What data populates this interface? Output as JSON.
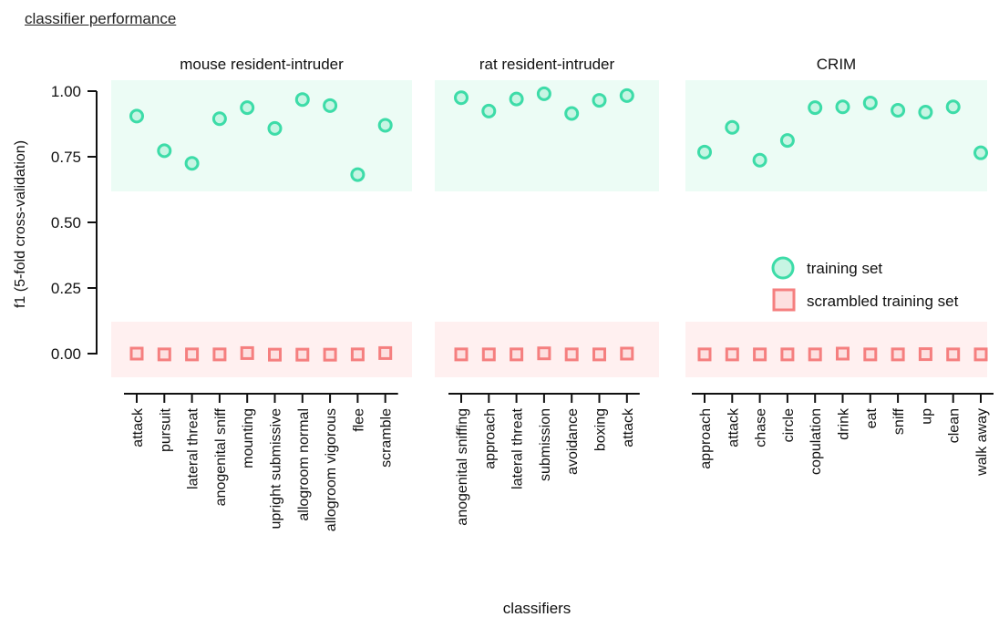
{
  "figure_title": "classifier performance",
  "chart_data": [
    {
      "type": "scatter",
      "title": "mouse resident-intruder",
      "categories": [
        "attack",
        "pursuit",
        "lateral threat",
        "anogenital sniff",
        "mounting",
        "upright submissive",
        "allogroom normal",
        "allogroom vigorous",
        "flee",
        "scramble"
      ],
      "series": [
        {
          "name": "training set",
          "values": [
            0.905,
            0.773,
            0.725,
            0.895,
            0.937,
            0.858,
            0.968,
            0.945,
            0.682,
            0.87
          ]
        },
        {
          "name": "scrambled training set",
          "values": [
            0.0,
            -0.003,
            -0.003,
            -0.003,
            0.002,
            -0.004,
            -0.004,
            -0.004,
            -0.003,
            0.002
          ]
        }
      ],
      "ylim": [
        -0.1,
        1.05
      ]
    },
    {
      "type": "scatter",
      "title": "rat resident-intruder",
      "categories": [
        "anogenital sniffing",
        "approach",
        "lateral threat",
        "submission",
        "avoidance",
        "boxing",
        "attack"
      ],
      "series": [
        {
          "name": "training set",
          "values": [
            0.975,
            0.924,
            0.97,
            0.99,
            0.915,
            0.965,
            0.983
          ]
        },
        {
          "name": "scrambled training set",
          "values": [
            -0.003,
            -0.003,
            -0.003,
            0.001,
            -0.003,
            -0.003,
            0.0
          ]
        }
      ],
      "ylim": [
        -0.1,
        1.05
      ]
    },
    {
      "type": "scatter",
      "title": "CRIM",
      "categories": [
        "approach",
        "attack",
        "chase",
        "circle",
        "copulation",
        "drink",
        "eat",
        "sniff",
        "up",
        "clean",
        "walk away"
      ],
      "series": [
        {
          "name": "training set",
          "values": [
            0.768,
            0.862,
            0.737,
            0.812,
            0.937,
            0.94,
            0.955,
            0.927,
            0.92,
            0.94,
            0.765
          ]
        },
        {
          "name": "scrambled training set",
          "values": [
            -0.003,
            -0.003,
            -0.003,
            -0.003,
            -0.003,
            0.0,
            -0.003,
            -0.003,
            -0.002,
            -0.003,
            -0.003
          ]
        }
      ],
      "ylim": [
        -0.1,
        1.05
      ]
    }
  ],
  "shared": {
    "ylabel": "f1 (5-fold cross-validation)",
    "xlabel": "classifiers",
    "yticks": [
      "1.00",
      "0.75",
      "0.50",
      "0.25",
      "0.00"
    ],
    "ytick_values": [
      1.0,
      0.75,
      0.5,
      0.25,
      0.0
    ],
    "legend": {
      "placement": "right",
      "items": [
        {
          "label": "training set",
          "marker": "circle"
        },
        {
          "label": "scrambled training set",
          "marker": "square"
        }
      ]
    },
    "colors": {
      "training": "#3ddca8",
      "training_fill": "#c7f5e3",
      "training_band": "#ecfcf5",
      "scrambled": "#f57f7f",
      "scrambled_fill": "#fde0e0",
      "scrambled_band": "#fff0f0",
      "axis": "#111111"
    }
  }
}
